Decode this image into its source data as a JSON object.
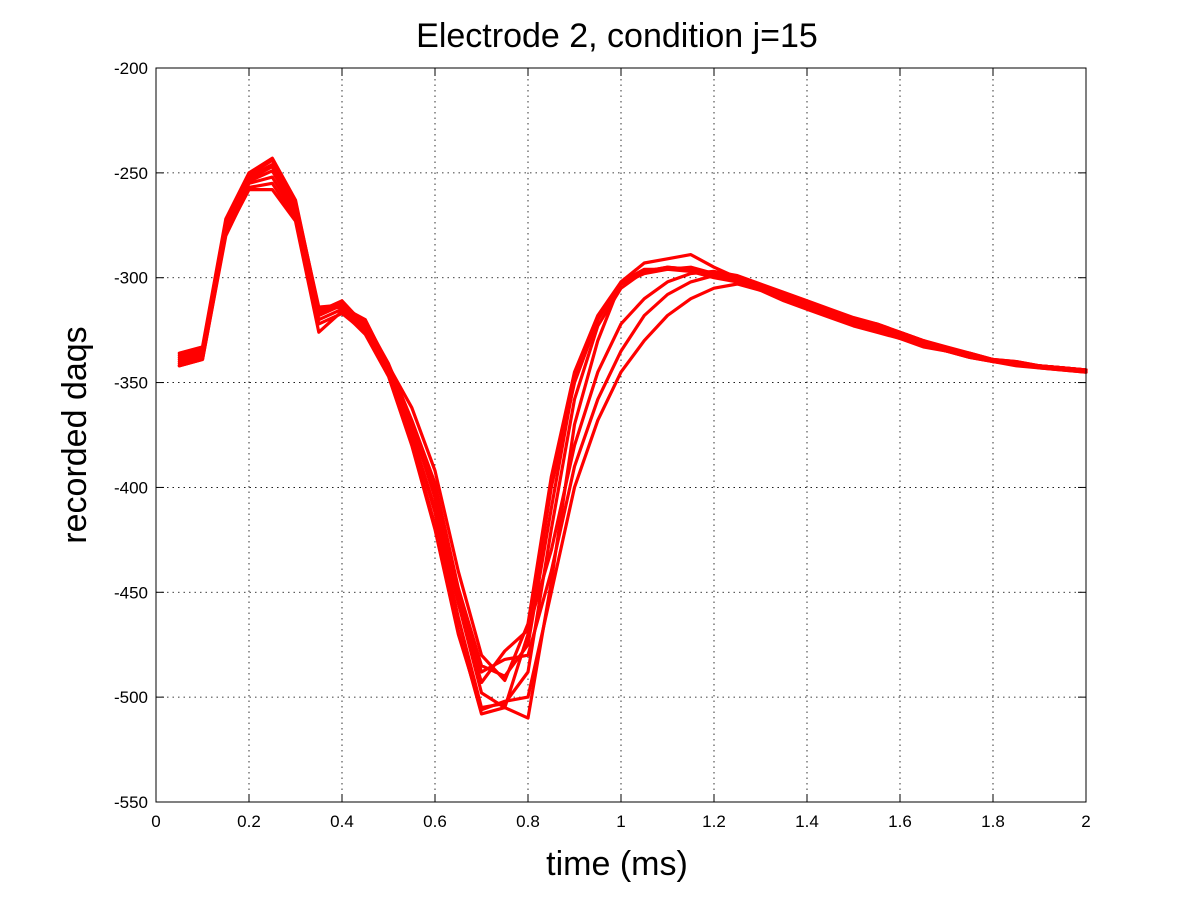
{
  "chart_data": {
    "type": "line",
    "title": "Electrode 2, condition j=15",
    "xlabel": "time (ms)",
    "ylabel": "recorded daqs",
    "xlim": [
      0,
      2
    ],
    "ylim": [
      -550,
      -200
    ],
    "xticks": [
      0,
      0.2,
      0.4,
      0.6,
      0.8,
      1,
      1.2,
      1.4,
      1.6,
      1.8,
      2
    ],
    "xtick_labels": [
      "0",
      "0.2",
      "0.4",
      "0.6",
      "0.8",
      "1",
      "1.2",
      "1.4",
      "1.6",
      "1.8",
      "2"
    ],
    "yticks": [
      -200,
      -250,
      -300,
      -350,
      -400,
      -450,
      -500,
      -550
    ],
    "ytick_labels": [
      "-200",
      "-250",
      "-300",
      "-350",
      "-400",
      "-450",
      "-500",
      "-550"
    ],
    "grid": true,
    "line_color": "#ff0000",
    "x": [
      0.05,
      0.1,
      0.15,
      0.2,
      0.25,
      0.3,
      0.35,
      0.4,
      0.45,
      0.5,
      0.55,
      0.6,
      0.65,
      0.7,
      0.75,
      0.8,
      0.85,
      0.9,
      0.95,
      1.0,
      1.05,
      1.1,
      1.15,
      1.2,
      1.25,
      1.3,
      1.35,
      1.4,
      1.45,
      1.5,
      1.55,
      1.6,
      1.65,
      1.7,
      1.75,
      1.8,
      1.85,
      1.9,
      1.95,
      2.0
    ],
    "series": [
      {
        "values": [
          -336,
          -333,
          -272,
          -250,
          -243,
          -263,
          -315,
          -314,
          -320,
          -342,
          -362,
          -392,
          -440,
          -480,
          -492,
          -465,
          -395,
          -345,
          -318,
          -302,
          -293,
          -291,
          -289,
          -295,
          -300,
          -304,
          -308,
          -312,
          -316,
          -320,
          -322,
          -326,
          -330,
          -334,
          -337,
          -339,
          -340,
          -342,
          -343,
          -344
        ]
      },
      {
        "values": [
          -338,
          -335,
          -274,
          -252,
          -246,
          -266,
          -317,
          -312,
          -322,
          -343,
          -370,
          -405,
          -455,
          -498,
          -505,
          -470,
          -400,
          -350,
          -320,
          -303,
          -297,
          -295,
          -296,
          -298,
          -302,
          -306,
          -310,
          -314,
          -318,
          -322,
          -325,
          -328,
          -332,
          -335,
          -337,
          -340,
          -341,
          -342,
          -343,
          -344
        ]
      },
      {
        "values": [
          -340,
          -337,
          -276,
          -254,
          -249,
          -268,
          -318,
          -313,
          -324,
          -344,
          -374,
          -412,
          -462,
          -505,
          -503,
          -488,
          -420,
          -358,
          -323,
          -305,
          -297,
          -295,
          -296,
          -299,
          -301,
          -305,
          -309,
          -313,
          -317,
          -321,
          -324,
          -327,
          -331,
          -334,
          -336,
          -339,
          -341,
          -342,
          -343,
          -345
        ]
      },
      {
        "values": [
          -341,
          -338,
          -278,
          -255,
          -252,
          -270,
          -320,
          -315,
          -325,
          -345,
          -378,
          -418,
          -468,
          -508,
          -505,
          -510,
          -445,
          -370,
          -330,
          -302,
          -296,
          -296,
          -295,
          -298,
          -300,
          -304,
          -308,
          -312,
          -316,
          -320,
          -323,
          -327,
          -331,
          -334,
          -337,
          -339,
          -341,
          -343,
          -344,
          -345
        ]
      },
      {
        "values": [
          -342,
          -339,
          -280,
          -257,
          -255,
          -272,
          -322,
          -317,
          -326,
          -346,
          -375,
          -410,
          -455,
          -493,
          -478,
          -468,
          -430,
          -380,
          -345,
          -322,
          -310,
          -302,
          -298,
          -297,
          -299,
          -303,
          -307,
          -311,
          -315,
          -319,
          -322,
          -326,
          -330,
          -333,
          -336,
          -339,
          -340,
          -342,
          -343,
          -344
        ]
      },
      {
        "values": [
          -339,
          -336,
          -275,
          -253,
          -247,
          -267,
          -316,
          -311,
          -323,
          -342,
          -372,
          -402,
          -452,
          -488,
          -482,
          -480,
          -440,
          -390,
          -358,
          -335,
          -318,
          -308,
          -302,
          -299,
          -300,
          -304,
          -308,
          -312,
          -316,
          -320,
          -323,
          -326,
          -330,
          -334,
          -337,
          -340,
          -341,
          -342,
          -343,
          -344
        ]
      },
      {
        "values": [
          -337,
          -334,
          -273,
          -251,
          -244,
          -264,
          -314,
          -313,
          -321,
          -341,
          -368,
          -398,
          -448,
          -485,
          -490,
          -475,
          -410,
          -348,
          -319,
          -303,
          -298,
          -296,
          -297,
          -300,
          -302,
          -306,
          -311,
          -315,
          -319,
          -323,
          -326,
          -329,
          -333,
          -335,
          -338,
          -340,
          -341,
          -342,
          -343,
          -344
        ]
      },
      {
        "values": [
          -342,
          -339,
          -279,
          -258,
          -258,
          -273,
          -326,
          -316,
          -327,
          -347,
          -380,
          -420,
          -470,
          -506,
          -502,
          -500,
          -450,
          -400,
          -368,
          -345,
          -330,
          -318,
          -310,
          -305,
          -303,
          -306,
          -310,
          -314,
          -318,
          -322,
          -325,
          -329,
          -332,
          -335,
          -338,
          -340,
          -342,
          -343,
          -344,
          -345
        ]
      }
    ]
  }
}
